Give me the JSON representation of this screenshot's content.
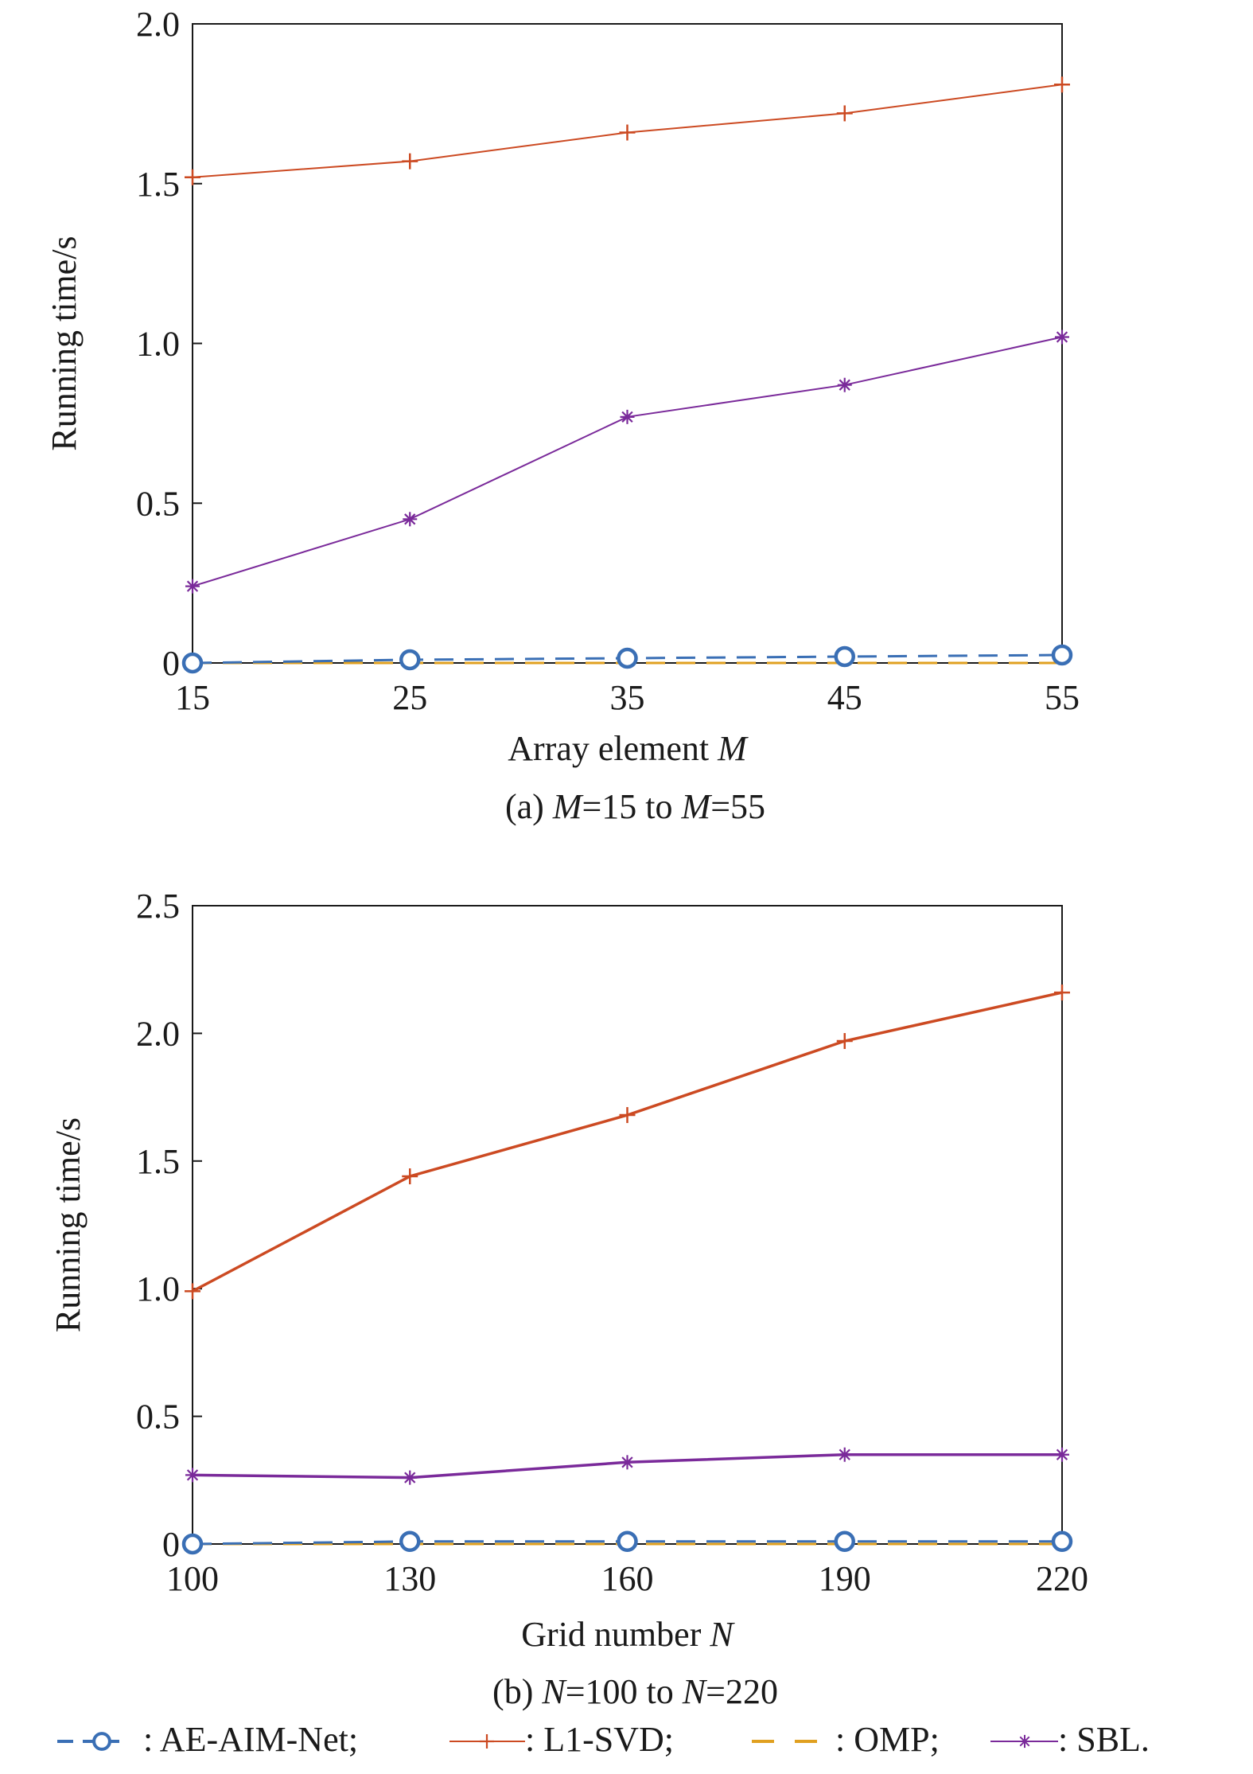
{
  "legend": {
    "items": [
      {
        "label": ": AE-AIM-Net;",
        "series": "AE-AIM-Net",
        "color": "#3a6fb5",
        "marker": "circle",
        "dash": true
      },
      {
        "label": ": L1-SVD;",
        "series": "L1-SVD",
        "color": "#cc4a22",
        "marker": "plus",
        "dash": false
      },
      {
        "label": ": OMP;",
        "series": "OMP",
        "color": "#e0a020",
        "marker": "none",
        "dash": true
      },
      {
        "label": ": SBL.",
        "series": "SBL",
        "color": "#7a2a9a",
        "marker": "star",
        "dash": false
      }
    ]
  },
  "chart_data": [
    {
      "type": "line",
      "title": "",
      "caption_parts": [
        {
          "text": "(a) ",
          "italic": false
        },
        {
          "text": "M",
          "italic": true
        },
        {
          "text": "=15 to ",
          "italic": false
        },
        {
          "text": "M",
          "italic": true
        },
        {
          "text": "=55",
          "italic": false
        }
      ],
      "xlabel_parts": [
        {
          "text": "Array element ",
          "italic": false
        },
        {
          "text": "M",
          "italic": true
        }
      ],
      "ylabel": "Running time/s",
      "x": [
        15,
        25,
        35,
        45,
        55
      ],
      "xlim": [
        15,
        55
      ],
      "ylim": [
        0,
        2.0
      ],
      "xticks": [
        15,
        25,
        35,
        45,
        55
      ],
      "yticks": [
        0,
        0.5,
        1.0,
        1.5,
        2.0
      ],
      "ytick_labels": [
        "0",
        "0.5",
        "1.0",
        "1.5",
        "2.0"
      ],
      "grid": false,
      "series": [
        {
          "name": "AE-AIM-Net",
          "values": [
            0.0,
            0.01,
            0.015,
            0.02,
            0.025
          ],
          "color": "#3a6fb5",
          "marker": "circle",
          "dash": true,
          "width": 3
        },
        {
          "name": "L1-SVD",
          "values": [
            1.52,
            1.57,
            1.66,
            1.72,
            1.81
          ],
          "color": "#cc4a22",
          "marker": "plus",
          "dash": false,
          "width": 2
        },
        {
          "name": "OMP",
          "values": [
            0.0,
            0.0,
            0.0,
            0.0,
            0.0
          ],
          "color": "#e0a020",
          "marker": "none",
          "dash": true,
          "width": 3
        },
        {
          "name": "SBL",
          "values": [
            0.24,
            0.45,
            0.77,
            0.87,
            1.02
          ],
          "color": "#7a2a9a",
          "marker": "star",
          "dash": false,
          "width": 2
        }
      ]
    },
    {
      "type": "line",
      "title": "",
      "caption_parts": [
        {
          "text": "(b) ",
          "italic": false
        },
        {
          "text": "N",
          "italic": true
        },
        {
          "text": "=100 to ",
          "italic": false
        },
        {
          "text": "N",
          "italic": true
        },
        {
          "text": "=220",
          "italic": false
        }
      ],
      "xlabel_parts": [
        {
          "text": "Grid number ",
          "italic": false
        },
        {
          "text": "N",
          "italic": true
        }
      ],
      "ylabel": "Running time/s",
      "x": [
        100,
        130,
        160,
        190,
        220
      ],
      "xlim": [
        100,
        220
      ],
      "ylim": [
        0,
        2.5
      ],
      "xticks": [
        100,
        130,
        160,
        190,
        220
      ],
      "yticks": [
        0,
        0.5,
        1.0,
        1.5,
        2.0,
        2.5
      ],
      "ytick_labels": [
        "0",
        "0.5",
        "1.0",
        "1.5",
        "2.0",
        "2.5"
      ],
      "grid": false,
      "series": [
        {
          "name": "AE-AIM-Net",
          "values": [
            0.0,
            0.01,
            0.01,
            0.01,
            0.01
          ],
          "color": "#3a6fb5",
          "marker": "circle",
          "dash": true,
          "width": 3
        },
        {
          "name": "L1-SVD",
          "values": [
            0.99,
            1.44,
            1.68,
            1.97,
            2.16
          ],
          "color": "#cc4a22",
          "marker": "plus",
          "dash": false,
          "width": 3.5
        },
        {
          "name": "OMP",
          "values": [
            0.0,
            0.0,
            0.0,
            0.0,
            0.0
          ],
          "color": "#e0a020",
          "marker": "none",
          "dash": true,
          "width": 3
        },
        {
          "name": "SBL",
          "values": [
            0.27,
            0.26,
            0.32,
            0.35,
            0.35
          ],
          "color": "#7a2a9a",
          "marker": "star",
          "dash": false,
          "width": 3.5
        }
      ]
    }
  ]
}
